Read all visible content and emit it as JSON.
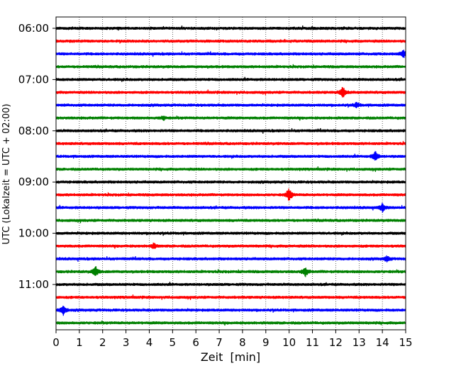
{
  "chart_data": {
    "type": "line",
    "title": "",
    "xlabel": "Zeit  [min]",
    "ylabel": "UTC (Lokalzeit = UTC + 02:00)",
    "xlim": [
      0,
      15
    ],
    "x_ticks": [
      "0",
      "1",
      "2",
      "3",
      "4",
      "5",
      "6",
      "7",
      "8",
      "9",
      "10",
      "11",
      "12",
      "13",
      "14",
      "15"
    ],
    "y_tick_labels": [
      "06:00",
      "07:00",
      "08:00",
      "09:00",
      "10:00",
      "11:00"
    ],
    "row_interval_min": 15,
    "row_start": "06:00",
    "row_count": 24,
    "row_colors": [
      "#000000",
      "#ff0000",
      "#0000ff",
      "#008000"
    ],
    "grid": "vertical dotted lines at each minute",
    "events": [
      {
        "row_time": "06:30",
        "minute": 14.9,
        "amplitude": 0.6
      },
      {
        "row_time": "07:15",
        "minute": 12.3,
        "amplitude": 0.9
      },
      {
        "row_time": "07:30",
        "minute": 12.9,
        "amplitude": 0.4
      },
      {
        "row_time": "07:45",
        "minute": 4.6,
        "amplitude": 0.3
      },
      {
        "row_time": "08:30",
        "minute": 13.7,
        "amplitude": 0.8
      },
      {
        "row_time": "09:15",
        "minute": 10.0,
        "amplitude": 1.0
      },
      {
        "row_time": "09:30",
        "minute": 14.0,
        "amplitude": 0.6
      },
      {
        "row_time": "10:15",
        "minute": 4.2,
        "amplitude": 0.4
      },
      {
        "row_time": "10:30",
        "minute": 14.2,
        "amplitude": 0.4
      },
      {
        "row_time": "10:45",
        "minute": 1.7,
        "amplitude": 0.8
      },
      {
        "row_time": "10:45",
        "minute": 10.7,
        "amplitude": 0.7
      },
      {
        "row_time": "11:30",
        "minute": 0.3,
        "amplitude": 0.8
      }
    ]
  }
}
